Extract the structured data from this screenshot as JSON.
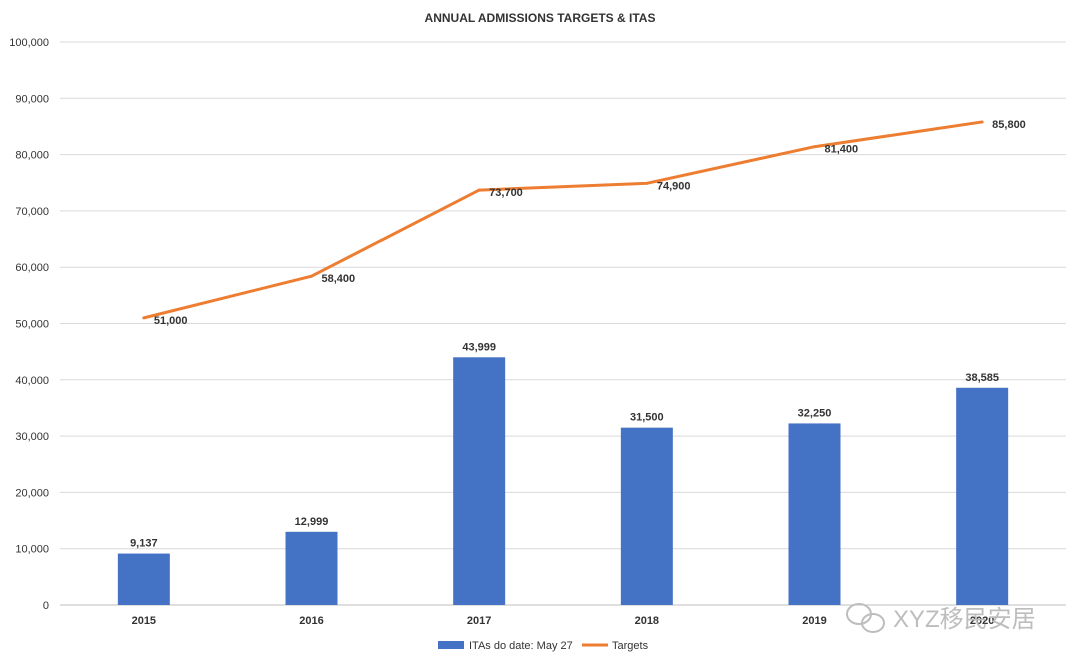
{
  "chart_data": {
    "type": "bar",
    "title": "ANNUAL ADMISSIONS TARGETS & ITAS",
    "categories": [
      "2015",
      "2016",
      "2017",
      "2018",
      "2019",
      "2020"
    ],
    "series": [
      {
        "name": "ITAs do date: May 27",
        "type": "bar",
        "color": "#4472C4",
        "values": [
          9137,
          12999,
          43999,
          31500,
          32250,
          38585
        ],
        "labels": [
          "9,137",
          "12,999",
          "43,999",
          "31,500",
          "32,250",
          "38,585"
        ]
      },
      {
        "name": "Targets",
        "type": "line",
        "color": "#ED7D31",
        "values": [
          51000,
          58400,
          73700,
          74900,
          81400,
          85800
        ],
        "labels": [
          "51,000",
          "58,400",
          "73,700",
          "74,900",
          "81,400",
          "85,800"
        ]
      }
    ],
    "ylim": [
      0,
      100000
    ],
    "yticks": [
      0,
      10000,
      20000,
      30000,
      40000,
      50000,
      60000,
      70000,
      80000,
      90000,
      100000
    ],
    "ytick_labels": [
      "0",
      "10,000",
      "20,000",
      "30,000",
      "40,000",
      "50,000",
      "60,000",
      "70,000",
      "80,000",
      "90,000",
      "100,000"
    ],
    "grid": true,
    "legend_position": "bottom"
  },
  "watermark": {
    "text": "XYZ移民安居",
    "icon": "wechat-icon"
  }
}
